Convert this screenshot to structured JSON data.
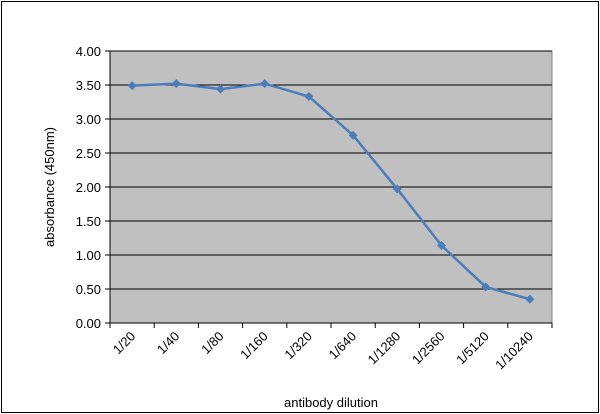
{
  "chart_data": {
    "type": "line",
    "title": "",
    "xlabel": "antibody dilution",
    "ylabel": "absorbance (450nm)",
    "categories": [
      "1/20",
      "1/40",
      "1/80",
      "1/160",
      "1/320",
      "1/640",
      "1/1280",
      "1/2560",
      "1/5120",
      "1/10240"
    ],
    "series": [
      {
        "values": [
          3.49,
          3.52,
          3.44,
          3.52,
          3.33,
          2.76,
          1.97,
          1.14,
          0.53,
          0.35
        ]
      }
    ],
    "ylim": [
      0,
      4
    ],
    "yticks": [
      "0.00",
      "0.50",
      "1.00",
      "1.50",
      "2.00",
      "2.50",
      "3.00",
      "3.50",
      "4.00"
    ],
    "grid": "horizontal",
    "legend": "none",
    "colors": {
      "line": "#4a7ebb",
      "plot_background": "#c0c0c0",
      "gridline": "#000000"
    }
  }
}
